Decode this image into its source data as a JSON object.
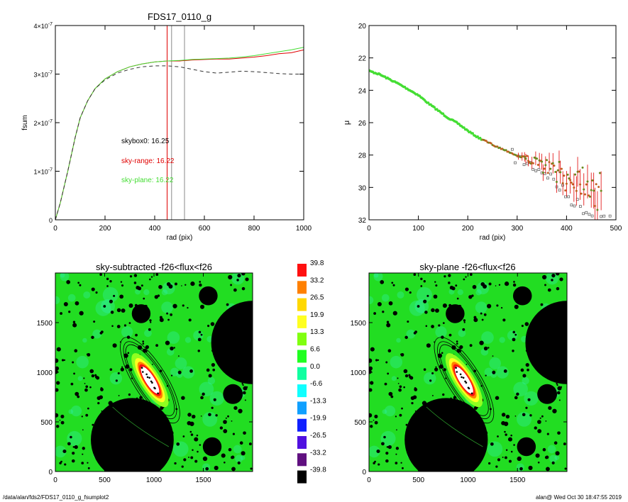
{
  "footer": {
    "path": "/data/alan/fds2/FDS17_0110_g_fsumplot2",
    "stamp": "alan@  Wed Oct 30 18:47:55 2019"
  },
  "colors": {
    "red_curve": "#e00000",
    "green_curve": "#44dd33",
    "olive_curve": "#8a6a10",
    "dashed": "#333333",
    "field_green": "#22dd22",
    "mask": "#000000"
  },
  "chart_data": [
    {
      "type": "line",
      "title": "FDS17_0110_g",
      "xlabel": "rad (pix)",
      "ylabel": "fsum",
      "xlim": [
        0,
        1000
      ],
      "ylim": [
        0,
        4e-07
      ],
      "x_ticks": [
        "0",
        "200",
        "400",
        "600",
        "800",
        "1000"
      ],
      "y_ticks": [
        {
          "mant": "0",
          "exp": ""
        },
        {
          "mant": "1×10",
          "exp": "-7"
        },
        {
          "mant": "2×10",
          "exp": "-7"
        },
        {
          "mant": "3×10",
          "exp": "-7"
        },
        {
          "mant": "4×10",
          "exp": "-7"
        }
      ],
      "vlines": [
        {
          "x": 450,
          "color": "red"
        },
        {
          "x": 468,
          "color": "gray"
        },
        {
          "x": 520,
          "color": "gray"
        }
      ],
      "annotations": [
        {
          "text": "skybox0: 16.25",
          "color": "black"
        },
        {
          "text": "sky-range: 16.22",
          "color": "red"
        },
        {
          "text": "sky-plane: 16.22",
          "color": "green"
        }
      ],
      "series": [
        {
          "color": "red",
          "points": [
            [
              0,
              0
            ],
            [
              20,
              3.5e-08
            ],
            [
              50,
              1e-07
            ],
            [
              80,
              1.7e-07
            ],
            [
              100,
              2.1e-07
            ],
            [
              130,
              2.45e-07
            ],
            [
              160,
              2.7e-07
            ],
            [
              200,
              2.9e-07
            ],
            [
              250,
              3.05e-07
            ],
            [
              300,
              3.15e-07
            ],
            [
              350,
              3.21e-07
            ],
            [
              400,
              3.25e-07
            ],
            [
              450,
              3.27e-07
            ],
            [
              500,
              3.27e-07
            ],
            [
              550,
              3.29e-07
            ],
            [
              600,
              3.3e-07
            ],
            [
              650,
              3.31e-07
            ],
            [
              700,
              3.31e-07
            ],
            [
              750,
              3.33e-07
            ],
            [
              800,
              3.35e-07
            ],
            [
              850,
              3.38e-07
            ],
            [
              900,
              3.42e-07
            ],
            [
              950,
              3.44e-07
            ],
            [
              1000,
              3.5e-07
            ]
          ]
        },
        {
          "color": "green",
          "points": [
            [
              0,
              0
            ],
            [
              20,
              3.5e-08
            ],
            [
              50,
              1e-07
            ],
            [
              80,
              1.7e-07
            ],
            [
              100,
              2.1e-07
            ],
            [
              130,
              2.45e-07
            ],
            [
              160,
              2.7e-07
            ],
            [
              200,
              2.9e-07
            ],
            [
              250,
              3.05e-07
            ],
            [
              300,
              3.15e-07
            ],
            [
              350,
              3.21e-07
            ],
            [
              400,
              3.25e-07
            ],
            [
              450,
              3.27e-07
            ],
            [
              500,
              3.28e-07
            ],
            [
              550,
              3.3e-07
            ],
            [
              600,
              3.31e-07
            ],
            [
              650,
              3.32e-07
            ],
            [
              700,
              3.33e-07
            ],
            [
              750,
              3.35e-07
            ],
            [
              800,
              3.38e-07
            ],
            [
              850,
              3.42e-07
            ],
            [
              900,
              3.46e-07
            ],
            [
              950,
              3.5e-07
            ],
            [
              1000,
              3.55e-07
            ]
          ]
        },
        {
          "color": "dashed",
          "points": [
            [
              0,
              0
            ],
            [
              20,
              3.5e-08
            ],
            [
              50,
              1e-07
            ],
            [
              80,
              1.7e-07
            ],
            [
              100,
              2.1e-07
            ],
            [
              130,
              2.45e-07
            ],
            [
              160,
              2.7e-07
            ],
            [
              200,
              2.88e-07
            ],
            [
              250,
              3.02e-07
            ],
            [
              300,
              3.1e-07
            ],
            [
              350,
              3.15e-07
            ],
            [
              400,
              3.17e-07
            ],
            [
              450,
              3.17e-07
            ],
            [
              500,
              3.15e-07
            ],
            [
              550,
              3.1e-07
            ],
            [
              600,
              3.05e-07
            ],
            [
              650,
              3.02e-07
            ],
            [
              700,
              3.04e-07
            ],
            [
              750,
              3.06e-07
            ],
            [
              800,
              3.05e-07
            ],
            [
              850,
              3.03e-07
            ],
            [
              900,
              3.01e-07
            ],
            [
              950,
              3e-07
            ],
            [
              1000,
              3e-07
            ]
          ]
        }
      ]
    },
    {
      "type": "scatter",
      "title": "",
      "xlabel": "rad (pix)",
      "ylabel": "μ",
      "xlim": [
        0,
        500
      ],
      "ylim": [
        32,
        20
      ],
      "x_ticks": [
        "0",
        "100",
        "200",
        "300",
        "400",
        "500"
      ],
      "y_ticks": [
        "20",
        "22",
        "24",
        "26",
        "28",
        "30",
        "32"
      ],
      "points": [
        [
          0,
          22.8
        ],
        [
          20,
          23.0
        ],
        [
          40,
          23.3
        ],
        [
          60,
          23.6
        ],
        [
          80,
          23.95
        ],
        [
          100,
          24.3
        ],
        [
          120,
          24.8
        ],
        [
          140,
          25.25
        ],
        [
          160,
          25.7
        ],
        [
          180,
          26.05
        ],
        [
          200,
          26.5
        ],
        [
          220,
          26.9
        ],
        [
          240,
          27.2
        ],
        [
          260,
          27.5
        ],
        [
          280,
          27.75
        ],
        [
          300,
          28.05
        ],
        [
          320,
          28.2
        ],
        [
          340,
          28.5
        ],
        [
          360,
          28.75
        ],
        [
          380,
          29.0
        ],
        [
          400,
          29.5
        ],
        [
          420,
          29.3
        ],
        [
          440,
          29.5
        ],
        [
          450,
          29.7
        ],
        [
          465,
          30.5
        ]
      ],
      "sky_range_points": [
        [
          300,
          28.2
        ],
        [
          320,
          28.5
        ],
        [
          340,
          28.8
        ],
        [
          360,
          29.1
        ],
        [
          380,
          29.8
        ],
        [
          400,
          30.5
        ],
        [
          420,
          31.0
        ],
        [
          440,
          31.4
        ],
        [
          460,
          31.9
        ],
        [
          490,
          31.9
        ]
      ]
    },
    {
      "type": "heatmap",
      "title": "sky-subtracted -f26<flux<f26",
      "xlim": [
        0,
        2000
      ],
      "ylim": [
        0,
        2000
      ],
      "x_ticks": [
        "0",
        "500",
        "1000",
        "1500"
      ],
      "y_ticks": [
        "0",
        "500",
        "1000",
        "1500"
      ]
    },
    {
      "type": "heatmap",
      "title": "sky-plane -f26<flux<f26",
      "xlim": [
        0,
        2000
      ],
      "ylim": [
        0,
        2000
      ],
      "x_ticks": [
        "0",
        "500",
        "1000",
        "1500"
      ],
      "y_ticks": [
        "0",
        "500",
        "1000",
        "1500"
      ]
    }
  ],
  "colorbar": {
    "labels": [
      "39.8",
      "33.2",
      "26.5",
      "19.9",
      "13.3",
      "6.6",
      "0.0",
      "-6.6",
      "-13.3",
      "-19.9",
      "-26.5",
      "-33.2",
      "-39.8"
    ],
    "colors": [
      "#ff1010",
      "#ff8000",
      "#ffd800",
      "#ffff20",
      "#80ff10",
      "#20ff20",
      "#10ffa0",
      "#10ffff",
      "#10a0ff",
      "#1020ff",
      "#5010e0",
      "#601080",
      "#000000"
    ]
  }
}
